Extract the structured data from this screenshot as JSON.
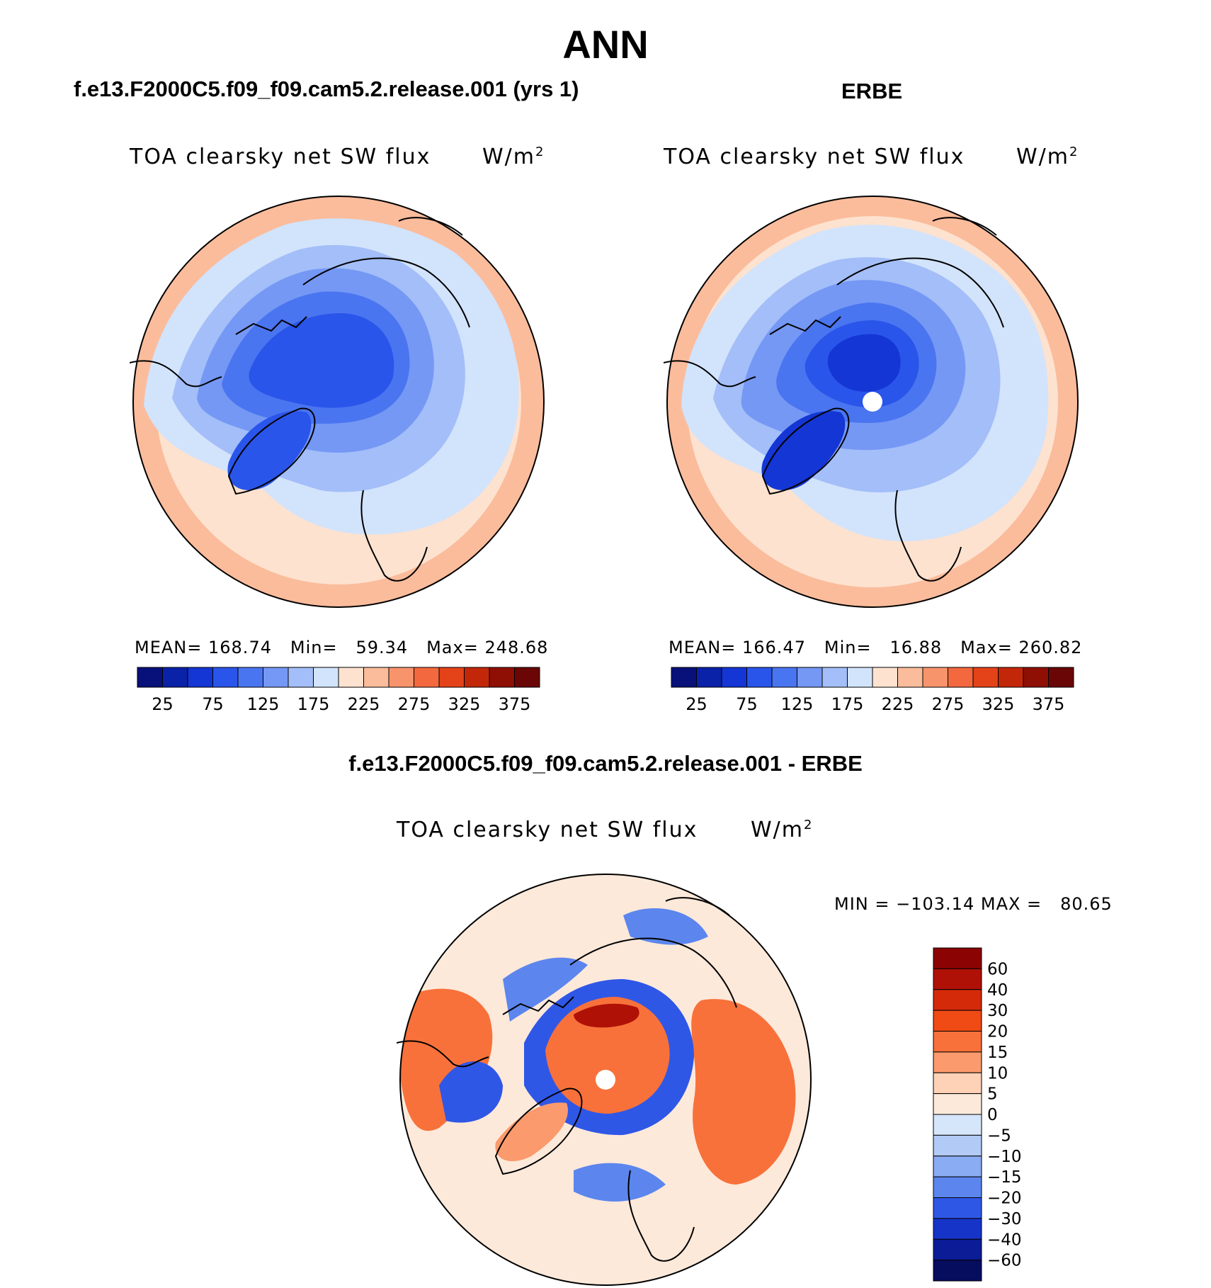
{
  "main_title": "ANN",
  "chart_data": [
    {
      "type": "heatmap",
      "projection": "north-polar-stereographic",
      "title": "f.e13.F2000C5.f09_f09.cam5.2.release.001 (yrs 1)",
      "variable": "TOA clearsky net SW flux",
      "units": "W/m",
      "units_exp": "2",
      "stats": {
        "mean_label": "MEAN=",
        "mean": "168.74",
        "min_label": "Min=",
        "min": "59.34",
        "max_label": "Max=",
        "max": "248.68"
      },
      "colorbar": {
        "orientation": "horizontal",
        "levels": [
          25,
          50,
          75,
          100,
          125,
          150,
          175,
          200,
          225,
          250,
          275,
          300,
          325,
          350,
          375
        ],
        "tick_labels": [
          "25",
          "75",
          "125",
          "175",
          "225",
          "275",
          "325",
          "375"
        ],
        "colors": [
          "#08107a",
          "#0a22a8",
          "#1436d4",
          "#2a55ea",
          "#4a75f0",
          "#7598f5",
          "#a3bef8",
          "#d2e3fc",
          "#fde2cf",
          "#fbbc9c",
          "#f8946c",
          "#f3683e",
          "#e44319",
          "#c32709",
          "#8f0f05",
          "#6a0606"
        ]
      }
    },
    {
      "type": "heatmap",
      "projection": "north-polar-stereographic",
      "title": "ERBE",
      "variable": "TOA clearsky net SW flux",
      "units": "W/m",
      "units_exp": "2",
      "stats": {
        "mean_label": "MEAN=",
        "mean": "166.47",
        "min_label": "Min=",
        "min": "16.88",
        "max_label": "Max=",
        "max": "260.82"
      },
      "colorbar": {
        "orientation": "horizontal",
        "levels": [
          25,
          50,
          75,
          100,
          125,
          150,
          175,
          200,
          225,
          250,
          275,
          300,
          325,
          350,
          375
        ],
        "tick_labels": [
          "25",
          "75",
          "125",
          "175",
          "225",
          "275",
          "325",
          "375"
        ],
        "colors": [
          "#08107a",
          "#0a22a8",
          "#1436d4",
          "#2a55ea",
          "#4a75f0",
          "#7598f5",
          "#a3bef8",
          "#d2e3fc",
          "#fde2cf",
          "#fbbc9c",
          "#f8946c",
          "#f3683e",
          "#e44319",
          "#c32709",
          "#8f0f05",
          "#6a0606"
        ]
      }
    },
    {
      "type": "heatmap",
      "projection": "north-polar-stereographic",
      "title": "f.e13.F2000C5.f09_f09.cam5.2.release.001 - ERBE",
      "variable": "TOA clearsky net SW flux",
      "units": "W/m",
      "units_exp": "2",
      "stats": {
        "min_label": "MIN =",
        "min": "−103.14",
        "max_label": "MAX =",
        "max": "80.65"
      },
      "colorbar": {
        "orientation": "vertical",
        "levels": [
          60,
          40,
          30,
          20,
          15,
          10,
          5,
          0,
          -5,
          -10,
          -15,
          -20,
          -30,
          -40,
          -60
        ],
        "tick_labels": [
          "60",
          "40",
          "30",
          "20",
          "15",
          "10",
          "5",
          "0",
          "−5",
          "−10",
          "−15",
          "−20",
          "−30",
          "−40",
          "−60"
        ],
        "colors": [
          "#8b0303",
          "#b01106",
          "#d42a0a",
          "#f04a15",
          "#f8713a",
          "#fb9a6c",
          "#fdd2b6",
          "#fde9da",
          "#d6e6fa",
          "#b2cbf6",
          "#8aacf2",
          "#5c86ee",
          "#2f57e6",
          "#1634c8",
          "#0b1c96",
          "#060d5e"
        ]
      }
    }
  ]
}
